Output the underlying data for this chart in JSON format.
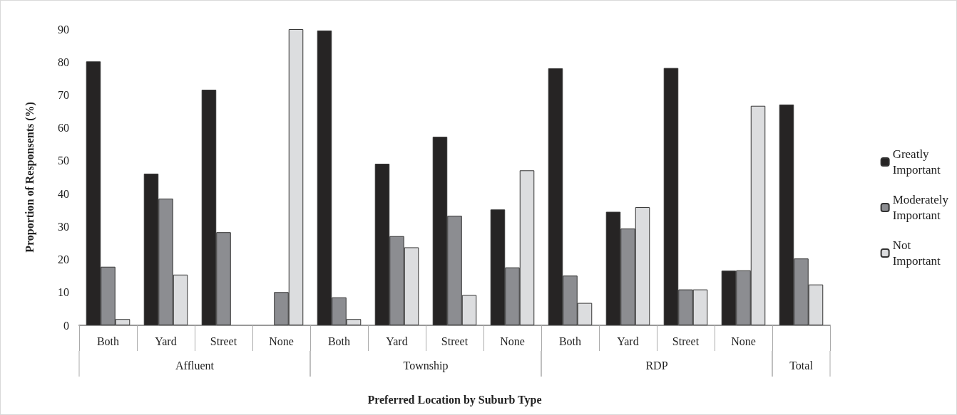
{
  "chart_data": {
    "type": "bar",
    "xlabel": "Preferred Location by Suburb Type",
    "ylabel": "Proportion of Responsents (%)",
    "categories": [
      "Both",
      "Yard",
      "Street",
      "None",
      "Both",
      "Yard",
      "Street",
      "None",
      "Both",
      "Yard",
      "Street",
      "None",
      null
    ],
    "annotations": [
      "Affluent",
      "Township",
      "RDP",
      "Total"
    ],
    "series": [
      {
        "name": "Greatly Important",
        "color": "#262424",
        "values": [
          80.2,
          46.1,
          71.6,
          0,
          89.6,
          49.1,
          57.3,
          35.2,
          78.1,
          34.5,
          78.2,
          16.6,
          67.1
        ]
      },
      {
        "name": "Moderately Important",
        "color": "#8c8d91",
        "values": [
          17.8,
          38.5,
          28.3,
          10.1,
          8.5,
          27.1,
          33.3,
          17.6,
          15.1,
          29.4,
          10.9,
          16.7,
          20.3
        ]
      },
      {
        "name": "Not Important",
        "color": "#dcdddf",
        "values": [
          1.9,
          15.4,
          0,
          90,
          1.9,
          23.7,
          9.2,
          47.1,
          6.8,
          35.9,
          10.9,
          66.7,
          12.4
        ]
      }
    ],
    "ylim": [
      0,
      90
    ],
    "yticks": [
      0,
      10,
      20,
      30,
      40,
      50,
      60,
      70,
      80,
      90
    ],
    "grid": false,
    "legend": "right"
  }
}
